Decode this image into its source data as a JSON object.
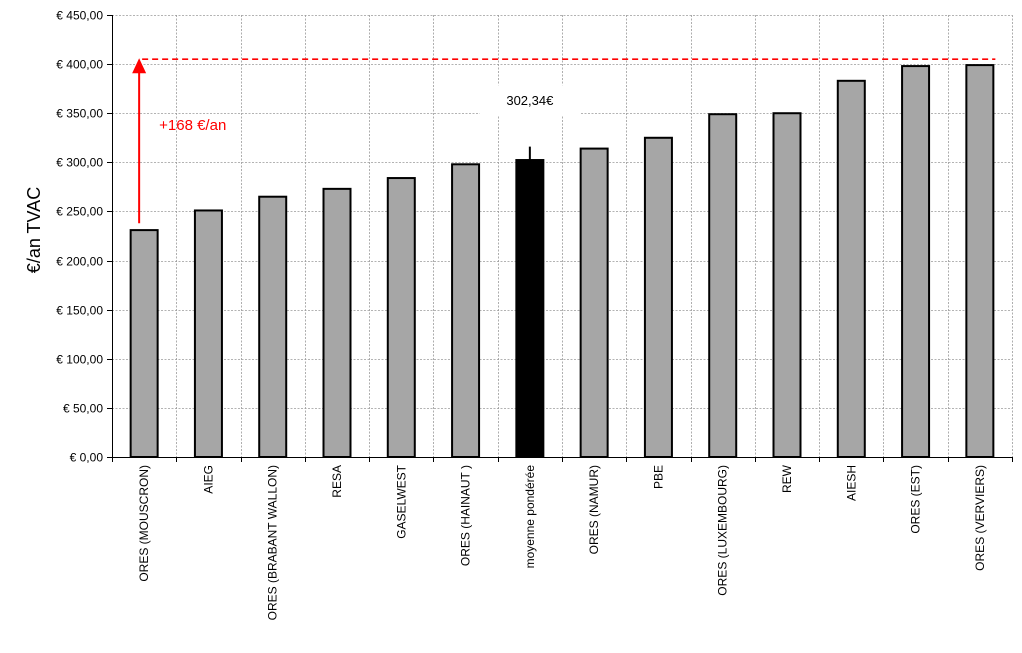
{
  "chart_data": {
    "type": "bar",
    "ylabel": "€/an TVAC",
    "xlabel": "",
    "ylim": [
      0,
      450
    ],
    "y_ticks": [
      0,
      50,
      100,
      150,
      200,
      250,
      300,
      350,
      400,
      450
    ],
    "y_tick_labels": [
      "€ 0,00",
      "€ 50,00",
      "€ 100,00",
      "€ 150,00",
      "€ 200,00",
      "€ 250,00",
      "€ 300,00",
      "€ 350,00",
      "€ 400,00",
      "€ 450,00"
    ],
    "grid": "both dotted",
    "categories": [
      "ORES (MOUSCRON)",
      "AIEG",
      "ORES (BRABANT WALLON)",
      "RESA",
      "GASELWEST",
      "ORES (HAINAUT )",
      "moyenne pondérée",
      "ORES (NAMUR)",
      "PBE",
      "ORES (LUXEMBOURG)",
      "REW",
      "AIESH",
      "ORES (EST)",
      "ORES (VERVIERS)"
    ],
    "values": [
      231,
      251,
      265,
      273,
      284,
      298,
      302.34,
      314,
      325,
      349,
      350,
      383,
      398,
      399
    ],
    "highlight_index": 6,
    "average_label": "302,34€",
    "average_error_top": 316,
    "reference_line": 405,
    "annotation": {
      "text": "+168 €/an",
      "from": 238,
      "to": 405
    },
    "colors": {
      "bar": "#a6a6a6",
      "bar_highlight": "#000000",
      "bar_edge": "#000000",
      "annotation": "#ff0000",
      "grid": "#9a9a9a"
    }
  }
}
